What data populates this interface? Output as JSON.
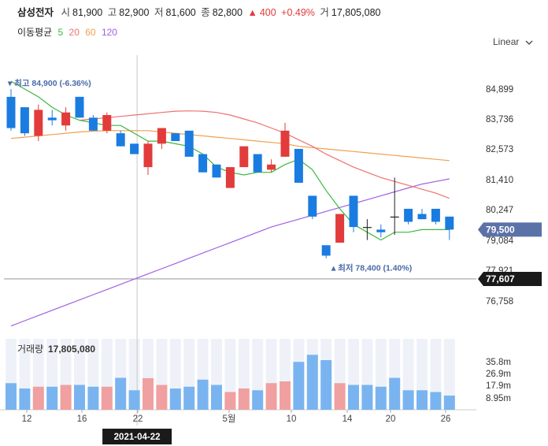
{
  "header": {
    "name": "삼성전자",
    "open_label": "시",
    "open": "81,900",
    "high_label": "고",
    "high": "82,900",
    "low_label": "저",
    "low": "81,600",
    "close_label": "종",
    "close": "82,800",
    "change_arrow": "▲",
    "change": "400",
    "change_pct": "+0.49%",
    "volume_label": "거",
    "volume": "17,805,080"
  },
  "ma_legend": {
    "title": "이동평균",
    "items": [
      {
        "period": "5",
        "color": "#3cb83c"
      },
      {
        "period": "20",
        "color": "#f07070"
      },
      {
        "period": "60",
        "color": "#f0a050"
      },
      {
        "period": "120",
        "color": "#a060e0"
      }
    ]
  },
  "scale_button": {
    "label": "Linear",
    "icon": "chevron-down-icon"
  },
  "colors": {
    "up": "#e23b3b",
    "down": "#1a7ce0",
    "vol_up": "#f0a0a0",
    "vol_down": "#7ab4f0",
    "axis_tag_current": "#5b72a8",
    "axis_tag_ref": "#1a1a1a"
  },
  "chart_data": {
    "type": "candlestick",
    "x_ticks": [
      "12",
      "16",
      "22",
      "5월",
      "10",
      "14",
      "20",
      "26"
    ],
    "y_ticks": [
      "84,899",
      "83,736",
      "82,573",
      "81,410",
      "80,247",
      "79,084",
      "77,921",
      "76,758"
    ],
    "ylim": [
      76500,
      85500
    ],
    "candles": [
      {
        "o": 84600,
        "h": 84900,
        "l": 83300,
        "c": 83400
      },
      {
        "o": 84200,
        "h": 84200,
        "l": 83100,
        "c": 83200
      },
      {
        "o": 83100,
        "h": 84300,
        "l": 82900,
        "c": 84100
      },
      {
        "o": 83800,
        "h": 84100,
        "l": 83500,
        "c": 83700
      },
      {
        "o": 83500,
        "h": 84200,
        "l": 83300,
        "c": 84000
      },
      {
        "o": 84600,
        "h": 84600,
        "l": 83800,
        "c": 83800
      },
      {
        "o": 83800,
        "h": 83900,
        "l": 83300,
        "c": 83300
      },
      {
        "o": 83300,
        "h": 84000,
        "l": 83200,
        "c": 83900
      },
      {
        "o": 83200,
        "h": 83300,
        "l": 82700,
        "c": 82700
      },
      {
        "o": 82800,
        "h": 82800,
        "l": 82400,
        "c": 82400
      },
      {
        "o": 81900,
        "h": 82900,
        "l": 81600,
        "c": 82800
      },
      {
        "o": 82800,
        "h": 83400,
        "l": 82600,
        "c": 83400
      },
      {
        "o": 83200,
        "h": 83200,
        "l": 82900,
        "c": 82900
      },
      {
        "o": 83300,
        "h": 83300,
        "l": 82300,
        "c": 82300
      },
      {
        "o": 82400,
        "h": 82400,
        "l": 81700,
        "c": 81700
      },
      {
        "o": 82000,
        "h": 82000,
        "l": 81500,
        "c": 81500
      },
      {
        "o": 81100,
        "h": 81900,
        "l": 81100,
        "c": 81900
      },
      {
        "o": 81900,
        "h": 82700,
        "l": 81900,
        "c": 82700
      },
      {
        "o": 82400,
        "h": 82400,
        "l": 81700,
        "c": 81700
      },
      {
        "o": 81800,
        "h": 82200,
        "l": 81700,
        "c": 82000
      },
      {
        "o": 82300,
        "h": 83600,
        "l": 82300,
        "c": 83300
      },
      {
        "o": 82600,
        "h": 82600,
        "l": 81300,
        "c": 81300
      },
      {
        "o": 80800,
        "h": 80800,
        "l": 79900,
        "c": 80000
      },
      {
        "o": 78900,
        "h": 78900,
        "l": 78400,
        "c": 78500
      },
      {
        "o": 79000,
        "h": 80100,
        "l": 79000,
        "c": 80100
      },
      {
        "o": 80800,
        "h": 80800,
        "l": 79400,
        "c": 79600
      },
      {
        "o": 79600,
        "h": 79900,
        "l": 79100,
        "c": 79600
      },
      {
        "o": 79500,
        "h": 79700,
        "l": 79200,
        "c": 79400
      },
      {
        "o": 80000,
        "h": 81500,
        "l": 79300,
        "c": 80000
      },
      {
        "o": 80300,
        "h": 80300,
        "l": 79700,
        "c": 79800
      },
      {
        "o": 80100,
        "h": 80300,
        "l": 79900,
        "c": 79900
      },
      {
        "o": 80300,
        "h": 80300,
        "l": 79700,
        "c": 79800
      },
      {
        "o": 80000,
        "h": 80000,
        "l": 79100,
        "c": 79500
      }
    ],
    "ma": {
      "ma5": [
        85200,
        84900,
        84600,
        84200,
        83900,
        83700,
        83600,
        83500,
        83500,
        83200,
        82900,
        82900,
        82800,
        82700,
        82400,
        81900,
        81700,
        81600,
        81700,
        81700,
        82000,
        82200,
        81800,
        81000,
        80300,
        79700,
        79400,
        79100,
        79400,
        79400,
        79500,
        79500,
        79500
      ],
      "ma20": [
        null,
        null,
        null,
        null,
        null,
        83700,
        83750,
        83800,
        83850,
        83900,
        83950,
        84000,
        84050,
        84060,
        84050,
        84000,
        83900,
        83750,
        83600,
        83400,
        83200,
        82950,
        82700,
        82400,
        82150,
        81900,
        81700,
        81500,
        81350,
        81200,
        81050,
        80900,
        80700
      ],
      "ma60": [
        83000,
        83050,
        83100,
        83150,
        83200,
        83250,
        83280,
        83300,
        83300,
        83300,
        83300,
        83250,
        83200,
        83150,
        83100,
        83050,
        83000,
        82950,
        82900,
        82850,
        82800,
        82700,
        82650,
        82600,
        82550,
        82500,
        82450,
        82400,
        82350,
        82300,
        82250,
        82200,
        82150
      ],
      "ma120": [
        75800,
        76000,
        76200,
        76400,
        76600,
        76800,
        77000,
        77200,
        77400,
        77600,
        77800,
        78000,
        78200,
        78400,
        78600,
        78800,
        79000,
        79200,
        79400,
        79600,
        79750,
        79900,
        80050,
        80200,
        80350,
        80500,
        80650,
        80800,
        80950,
        81100,
        81250,
        81350,
        81450
      ]
    },
    "volume": {
      "title": "거래량",
      "value": "17,805,080",
      "ticks": [
        "35.8m",
        "26.9m",
        "17.9m",
        "8.95m"
      ],
      "ylim": [
        0,
        40000000
      ],
      "values": [
        15000000,
        12000000,
        13000000,
        13000000,
        14000000,
        14000000,
        13000000,
        13000000,
        18000000,
        11000000,
        17805080,
        14000000,
        12000000,
        13000000,
        17000000,
        14000000,
        10000000,
        12000000,
        11000000,
        15000000,
        16000000,
        27000000,
        31000000,
        28000000,
        15000000,
        14000000,
        14000000,
        13000000,
        18000000,
        11000000,
        11000000,
        10000000,
        8000000
      ]
    },
    "annotations": {
      "high_label": "최고 84,900 (-6.36%)",
      "low_label": "최저 78,400 (1.40%)",
      "current_price": "79,500",
      "ref_price": "77,607",
      "crosshair_date": "2021-04-22"
    }
  }
}
